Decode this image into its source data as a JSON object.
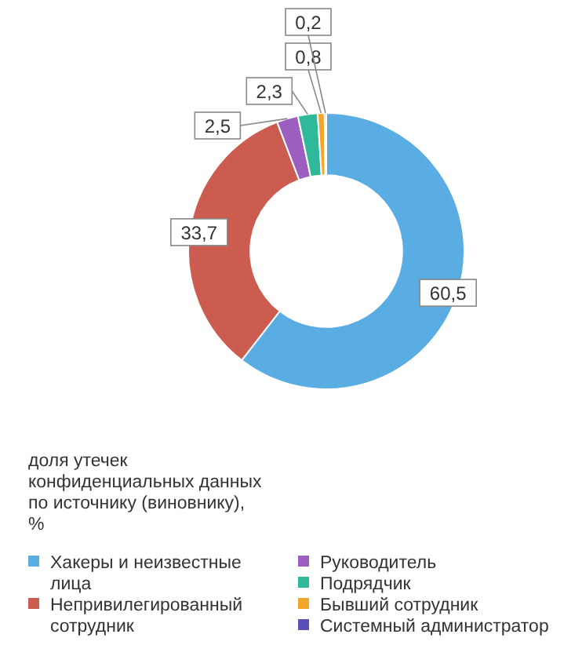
{
  "chart_data": {
    "type": "donut",
    "title": "доля утечек конфиденциальных данных по источнику (виновнику), %",
    "categories": [
      "Хакеры и неизвестные лица",
      "Непривилегированный сотрудник",
      "Руководитель",
      "Подрядчик",
      "Бывший сотрудник",
      "Системный администратор"
    ],
    "values": [
      60.5,
      33.7,
      2.5,
      2.3,
      0.8,
      0.2
    ],
    "value_labels": [
      "60,5",
      "33,7",
      "2,5",
      "2,3",
      "0,8",
      "0,2"
    ],
    "colors": [
      "#5aade3",
      "#cd5c50",
      "#9c5fbf",
      "#2fb99a",
      "#f2a72a",
      "#5b4fb5"
    ],
    "legend": "bottom"
  }
}
